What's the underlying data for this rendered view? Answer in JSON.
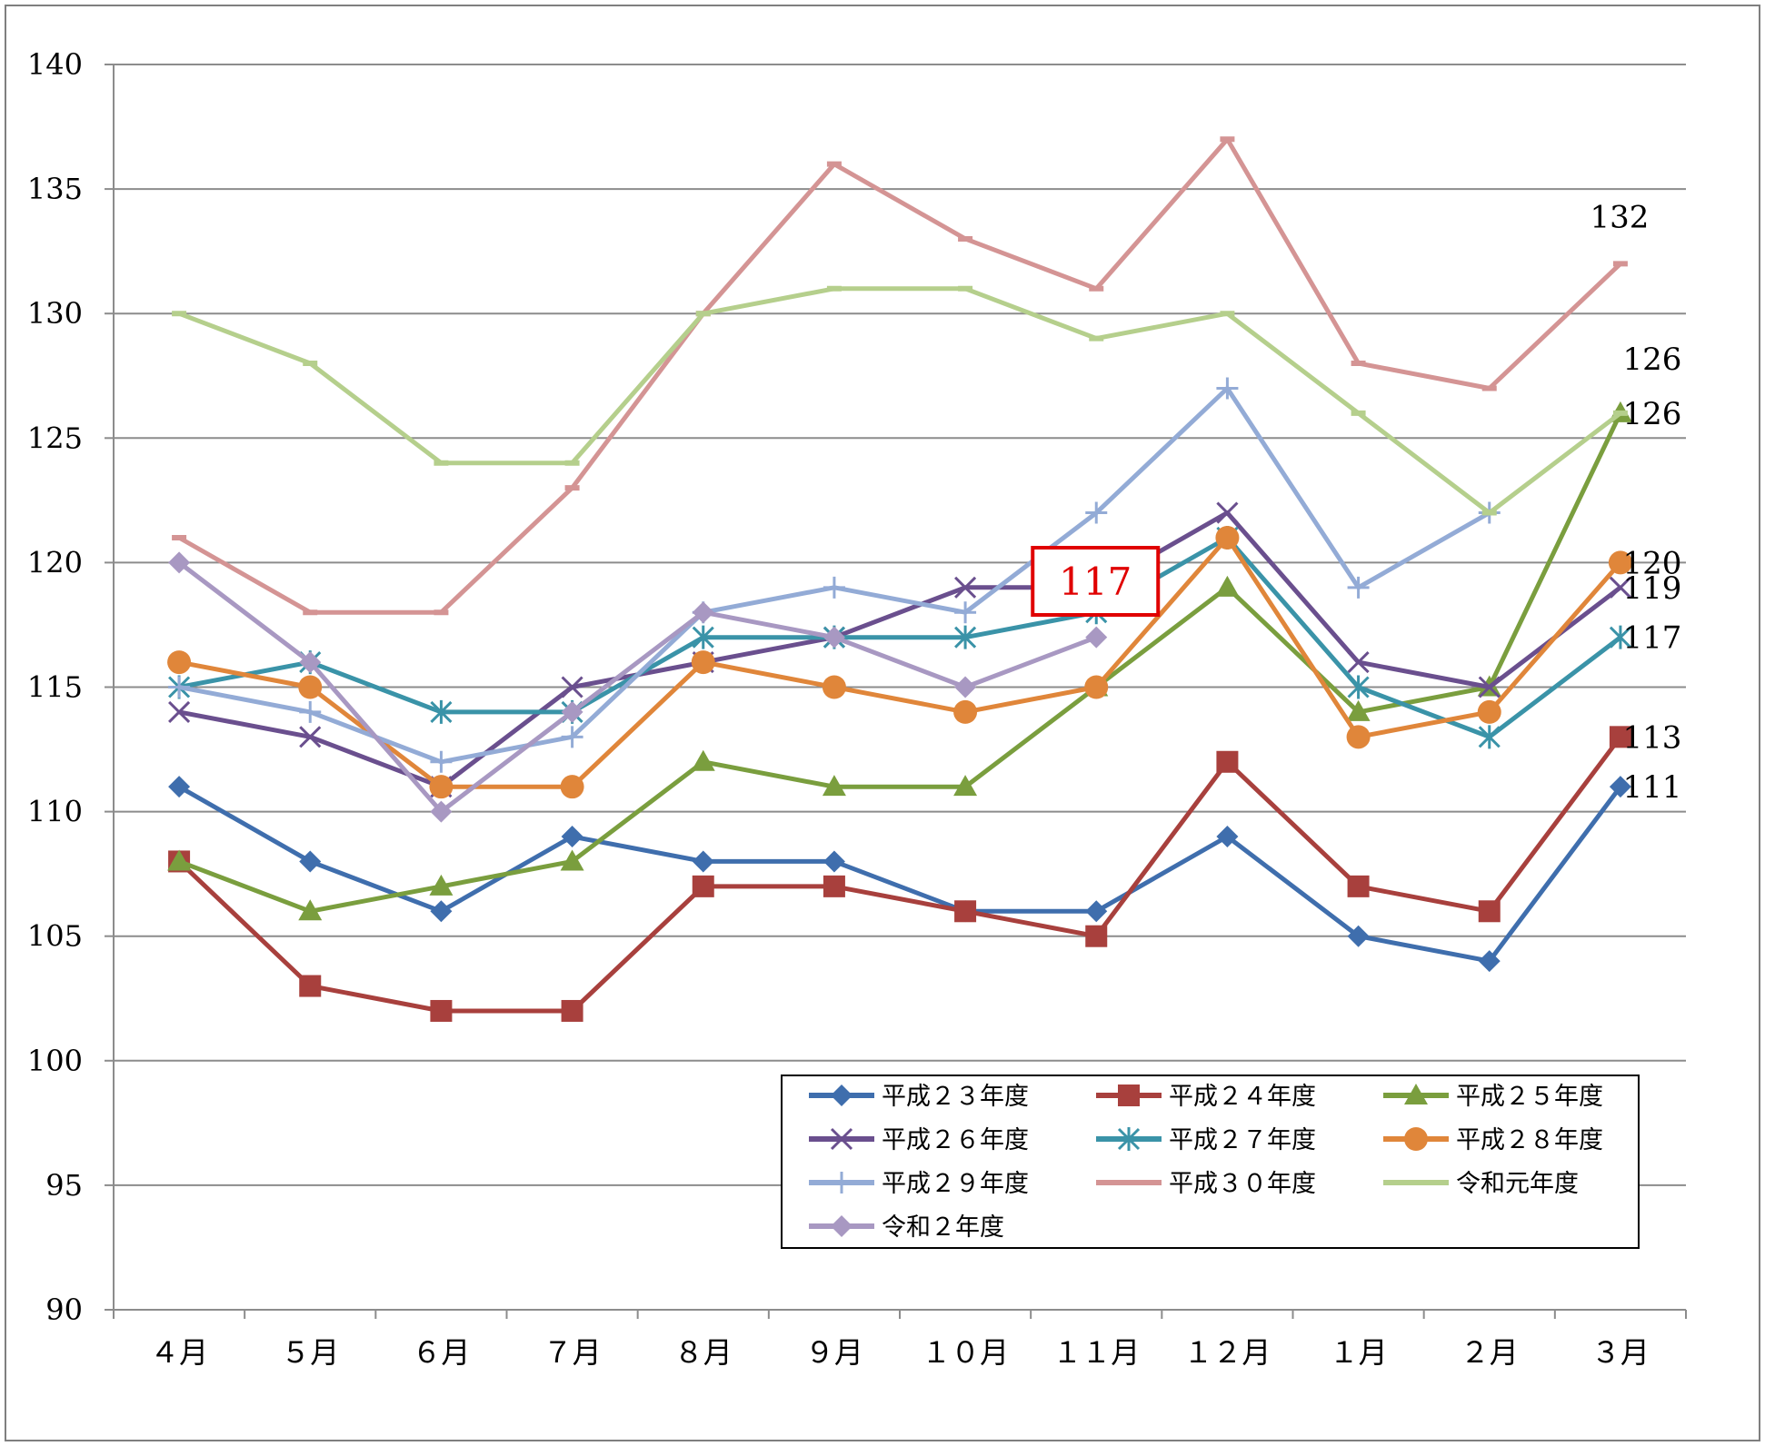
{
  "chart_data": {
    "type": "line",
    "categories": [
      "４月",
      "５月",
      "６月",
      "７月",
      "８月",
      "９月",
      "１０月",
      "１１月",
      "１２月",
      "１月",
      "２月",
      "３月"
    ],
    "ylim": [
      90,
      140
    ],
    "yticks": [
      90,
      95,
      100,
      105,
      110,
      115,
      120,
      125,
      130,
      135,
      140
    ],
    "grid": true,
    "legend_position": "bottom-right",
    "series": [
      {
        "name": "平成２３年度",
        "color": "#3F6EAD",
        "marker": "diamond",
        "values": [
          111,
          108,
          106,
          109,
          108,
          108,
          106,
          106,
          109,
          105,
          104,
          111
        ]
      },
      {
        "name": "平成２４年度",
        "color": "#A8403D",
        "marker": "square",
        "values": [
          108,
          103,
          102,
          102,
          107,
          107,
          106,
          105,
          112,
          107,
          106,
          113
        ]
      },
      {
        "name": "平成２５年度",
        "color": "#7A9E3E",
        "marker": "triangle",
        "values": [
          108,
          106,
          107,
          108,
          112,
          111,
          111,
          115,
          119,
          114,
          115,
          126
        ]
      },
      {
        "name": "平成２６年度",
        "color": "#6A4F8E",
        "marker": "x",
        "values": [
          114,
          113,
          111,
          115,
          116,
          117,
          119,
          119,
          122,
          116,
          115,
          119
        ]
      },
      {
        "name": "平成２７年度",
        "color": "#3A93A8",
        "marker": "star",
        "values": [
          115,
          116,
          114,
          114,
          117,
          117,
          117,
          118,
          121,
          115,
          113,
          117
        ]
      },
      {
        "name": "平成２８年度",
        "color": "#E0863A",
        "marker": "circle",
        "values": [
          116,
          115,
          111,
          111,
          116,
          115,
          114,
          115,
          121,
          113,
          114,
          120
        ]
      },
      {
        "name": "平成２９年度",
        "color": "#93ABD6",
        "marker": "plus",
        "values": [
          115,
          114,
          112,
          113,
          118,
          119,
          118,
          122,
          127,
          119,
          122,
          null
        ]
      },
      {
        "name": "平成３０年度",
        "color": "#D49494",
        "marker": "dash",
        "values": [
          121,
          118,
          118,
          123,
          130,
          136,
          133,
          131,
          137,
          128,
          127,
          132
        ]
      },
      {
        "name": "令和元年度",
        "color": "#B5CF8C",
        "marker": "dash",
        "values": [
          130,
          128,
          124,
          124,
          130,
          131,
          131,
          129,
          130,
          126,
          122,
          126
        ]
      },
      {
        "name": "令和２年度",
        "color": "#A898C2",
        "marker": "diamond",
        "values": [
          120,
          116,
          110,
          114,
          118,
          117,
          115,
          117,
          null,
          null,
          null,
          null
        ]
      }
    ],
    "end_labels": [
      {
        "text": "132",
        "value": 132
      },
      {
        "text": "126",
        "value": 126
      },
      {
        "text": "126",
        "value": 126
      },
      {
        "text": "120",
        "value": 120
      },
      {
        "text": "119",
        "value": 119
      },
      {
        "text": "117",
        "value": 117
      },
      {
        "text": "113",
        "value": 113
      },
      {
        "text": "111",
        "value": 111
      }
    ],
    "callout": {
      "text": "117",
      "category_index": 7,
      "color": "#E00000"
    }
  }
}
